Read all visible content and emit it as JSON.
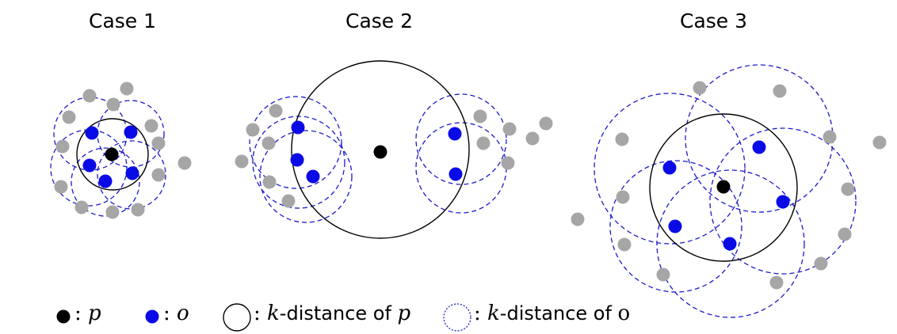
{
  "titles": [
    "Case 1",
    "Case 2",
    "Case 3"
  ],
  "colors": {
    "p": "#000000",
    "o": "#0a0ae6",
    "other": "#a6a6a6",
    "kdist_p": "#000000",
    "kdist_o": "#1a1acc"
  },
  "legend": {
    "p_sep": ": ",
    "p_var": "p",
    "o_sep": ": ",
    "o_var": "o",
    "kp_sep": ": ",
    "kp_k": "k",
    "kp_text": "-distance of ",
    "kp_var": "p",
    "ko_sep": ": ",
    "ko_k": "k",
    "ko_text": "-distance of ",
    "ko_var": "o"
  }
}
